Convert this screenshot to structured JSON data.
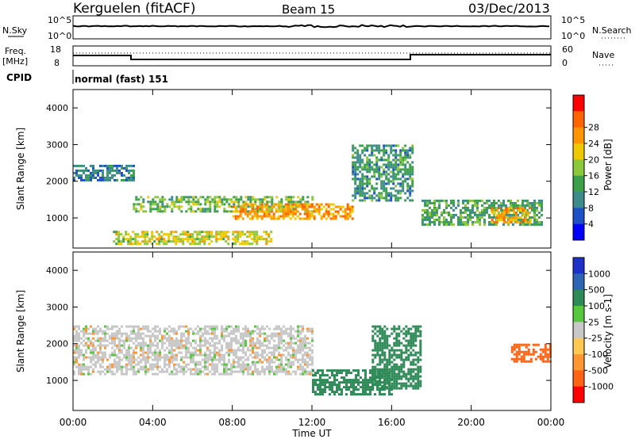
{
  "header": {
    "site": "Kerguelen (fitACF)",
    "beam": "Beam 15",
    "date": "03/Dec/2013"
  },
  "panels": {
    "nsky": {
      "label": "N.Sky",
      "ticks": [
        "10^5",
        "10^0"
      ],
      "right_label": "N.Search",
      "right_ticks": [
        "10^5",
        "10^0"
      ]
    },
    "freq": {
      "label_line1": "Freq.",
      "label_line2": "[MHz]",
      "ticks": [
        "18",
        "8"
      ],
      "right_label": "Nave",
      "right_ticks": [
        "60",
        "0"
      ]
    },
    "cpid": {
      "label": "CPID",
      "value": "normal (fast) 151"
    }
  },
  "colors": {
    "power": [
      "#0000ff",
      "#1e50c8",
      "#3c8c8c",
      "#3ca04b",
      "#8cc83c",
      "#f0c800",
      "#ff9600",
      "#ff6400",
      "#ff0000"
    ],
    "velocity": [
      "#1e32c8",
      "#2d64b4",
      "#2e8b57",
      "#55c83c",
      "#c8c8c8",
      "#ffc850",
      "#ff9632",
      "#ff6414",
      "#ff0000"
    ]
  },
  "chart_data": [
    {
      "type": "heatmap",
      "title": "Power",
      "ylabel": "Slant Range [km]",
      "ylim": [
        180,
        4500
      ],
      "yticks": [
        "1000",
        "2000",
        "3000",
        "4000"
      ],
      "xlim": [
        0,
        24
      ],
      "colorbar": {
        "label": "Power [dB]",
        "ticks": [
          "4",
          "8",
          "12",
          "16",
          "20",
          "24",
          "28"
        ]
      },
      "bands": [
        {
          "time": [
            0,
            3
          ],
          "range": [
            2050,
            2450
          ],
          "value": 10
        },
        {
          "time": [
            3,
            12
          ],
          "range": [
            1150,
            1600
          ],
          "value": 16
        },
        {
          "time": [
            8,
            14
          ],
          "range": [
            1000,
            1400
          ],
          "value": 26
        },
        {
          "time": [
            2,
            10
          ],
          "range": [
            300,
            650
          ],
          "value": 20
        },
        {
          "time": [
            14,
            17
          ],
          "range": [
            1500,
            3000
          ],
          "value": 12
        },
        {
          "time": [
            17.5,
            23.5
          ],
          "range": [
            800,
            1500
          ],
          "value": 14
        },
        {
          "time": [
            21,
            23
          ],
          "range": [
            900,
            1300
          ],
          "value": 26
        }
      ]
    },
    {
      "type": "heatmap",
      "title": "Velocity",
      "ylabel": "Slant Range [km]",
      "ylim": [
        180,
        4500
      ],
      "yticks": [
        "1000",
        "2000",
        "3000",
        "4000"
      ],
      "xlim": [
        0,
        24
      ],
      "xticks": [
        "00:00",
        "04:00",
        "08:00",
        "12:00",
        "16:00",
        "20:00",
        "00:00"
      ],
      "xlabel": "Time UT",
      "colorbar": {
        "label": "Velocity [m s-1]",
        "ticks": [
          "1000",
          "500",
          "100",
          "25",
          "-25",
          "-100",
          "-500",
          "-1000"
        ]
      },
      "bands": [
        {
          "time": [
            0,
            12
          ],
          "range": [
            1150,
            2500
          ],
          "value": 0
        },
        {
          "time": [
            12,
            16
          ],
          "range": [
            600,
            1300
          ],
          "value": 200
        },
        {
          "time": [
            15,
            17.5
          ],
          "range": [
            800,
            2500
          ],
          "value": 300
        },
        {
          "time": [
            22,
            24
          ],
          "range": [
            1500,
            2000
          ],
          "value": -300
        }
      ]
    }
  ]
}
